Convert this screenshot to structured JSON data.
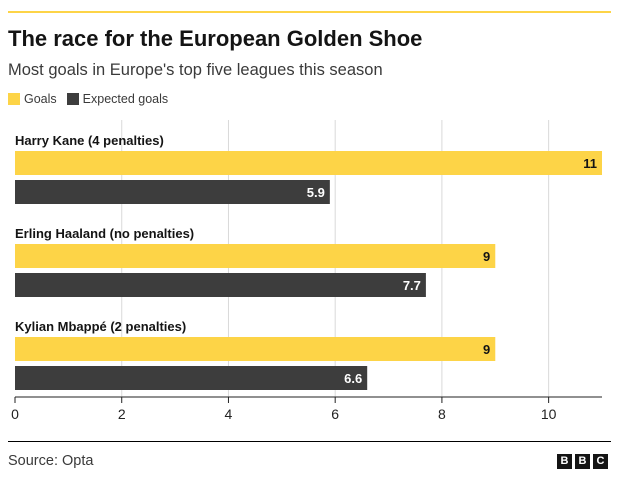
{
  "header": {
    "title": "The race for the European Golden Shoe",
    "subtitle": "Most goals in Europe's top five leagues this season"
  },
  "legend": {
    "items": [
      {
        "label": "Goals",
        "color": "#fdd447"
      },
      {
        "label": "Expected goals",
        "color": "#3d3d3d"
      }
    ]
  },
  "chart_data": {
    "type": "bar",
    "orientation": "horizontal",
    "categories": [
      "Harry Kane (4 penalties)",
      "Erling Haaland (no penalties)",
      "Kylian Mbappé (2 penalties)"
    ],
    "series": [
      {
        "name": "Goals",
        "values": [
          11,
          9,
          9
        ],
        "color": "#fdd447",
        "label_color": "#141414"
      },
      {
        "name": "Expected goals",
        "values": [
          5.9,
          7.7,
          6.6
        ],
        "color": "#3d3d3d",
        "label_color": "#ffffff"
      }
    ],
    "value_labels": [
      [
        "11",
        "9",
        "9"
      ],
      [
        "5.9",
        "7.7",
        "6.6"
      ]
    ],
    "xlim": [
      0,
      11
    ],
    "xticks": [
      0,
      2,
      4,
      6,
      8,
      10
    ],
    "xtick_labels": [
      "0",
      "2",
      "4",
      "6",
      "8",
      "10"
    ],
    "grid": true,
    "legend_position": "top-left"
  },
  "footer": {
    "source": "Source: Opta",
    "logo": [
      "B",
      "B",
      "C"
    ]
  }
}
